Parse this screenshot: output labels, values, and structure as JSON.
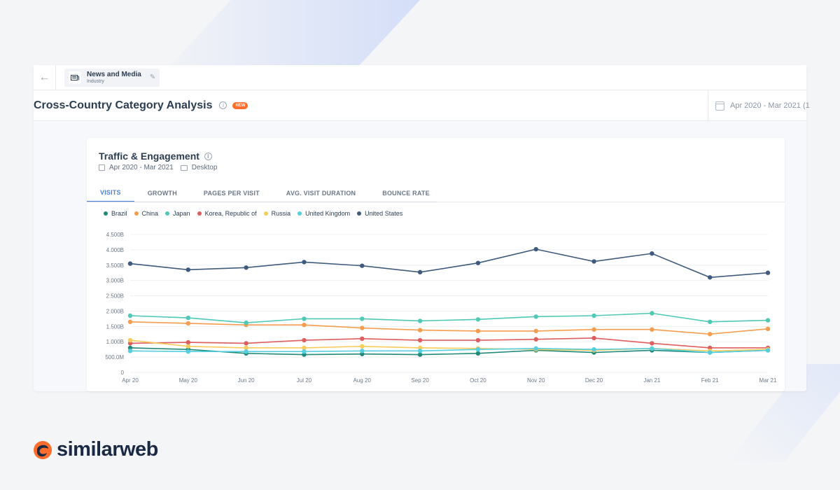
{
  "topbar": {
    "back_label": "←",
    "industry_name": "News and Media",
    "industry_type": "Industry"
  },
  "header": {
    "title": "Cross-Country Category Analysis",
    "badge": "NEW",
    "date_range": "Apr 2020 - Mar 2021 (1"
  },
  "card": {
    "title": "Traffic & Engagement",
    "date_range": "Apr 2020 - Mar 2021",
    "device": "Desktop",
    "tabs": [
      {
        "label": "VISITS",
        "active": true
      },
      {
        "label": "GROWTH",
        "active": false
      },
      {
        "label": "PAGES PER VISIT",
        "active": false
      },
      {
        "label": "AVG. VISIT DURATION",
        "active": false
      },
      {
        "label": "BOUNCE RATE",
        "active": false
      }
    ]
  },
  "logo": {
    "text": "similarweb"
  },
  "colors": {
    "brand_orange": "#ff6d2d",
    "brand_navy": "#1b2a44",
    "accent_blue": "#4b7fd6"
  },
  "chart_data": {
    "type": "line",
    "x": [
      "Apr 20",
      "May 20",
      "Jun 20",
      "Jul 20",
      "Aug 20",
      "Sep 20",
      "Oct 20",
      "Nov 20",
      "Dec 20",
      "Jan 21",
      "Feb 21",
      "Mar 21"
    ],
    "y_ticks": [
      "0",
      "500.0M",
      "1.000B",
      "1.500B",
      "2.000B",
      "2.500B",
      "3.000B",
      "3.500B",
      "4.000B",
      "4.500B"
    ],
    "ylim": [
      0,
      4.5
    ],
    "y_unit": "B",
    "grid": true,
    "legend_position": "top-left",
    "series": [
      {
        "name": "Brazil",
        "color": "#1f8a7a",
        "values": [
          0.8,
          0.75,
          0.62,
          0.58,
          0.6,
          0.58,
          0.62,
          0.72,
          0.65,
          0.72,
          0.65,
          0.72
        ]
      },
      {
        "name": "China",
        "color": "#f59d4f",
        "values": [
          1.65,
          1.6,
          1.55,
          1.55,
          1.45,
          1.38,
          1.35,
          1.35,
          1.4,
          1.4,
          1.25,
          1.42
        ]
      },
      {
        "name": "Japan",
        "color": "#4fc9b6",
        "values": [
          1.85,
          1.78,
          1.62,
          1.75,
          1.75,
          1.68,
          1.73,
          1.82,
          1.85,
          1.93,
          1.65,
          1.7
        ]
      },
      {
        "name": "Korea, Republic of",
        "color": "#e05d5d",
        "values": [
          0.95,
          0.98,
          0.95,
          1.05,
          1.1,
          1.05,
          1.05,
          1.08,
          1.12,
          0.95,
          0.8,
          0.8
        ]
      },
      {
        "name": "Russia",
        "color": "#f8cc5a",
        "values": [
          1.05,
          0.85,
          0.8,
          0.8,
          0.85,
          0.8,
          0.78,
          0.75,
          0.72,
          0.78,
          0.7,
          0.75
        ]
      },
      {
        "name": "United Kingdom",
        "color": "#55cfe0",
        "values": [
          0.7,
          0.68,
          0.68,
          0.68,
          0.7,
          0.7,
          0.75,
          0.78,
          0.75,
          0.78,
          0.65,
          0.72
        ]
      },
      {
        "name": "United States",
        "color": "#3e5a7c",
        "values": [
          3.55,
          3.35,
          3.42,
          3.6,
          3.48,
          3.27,
          3.57,
          4.02,
          3.62,
          3.88,
          3.1,
          3.25
        ]
      }
    ]
  }
}
